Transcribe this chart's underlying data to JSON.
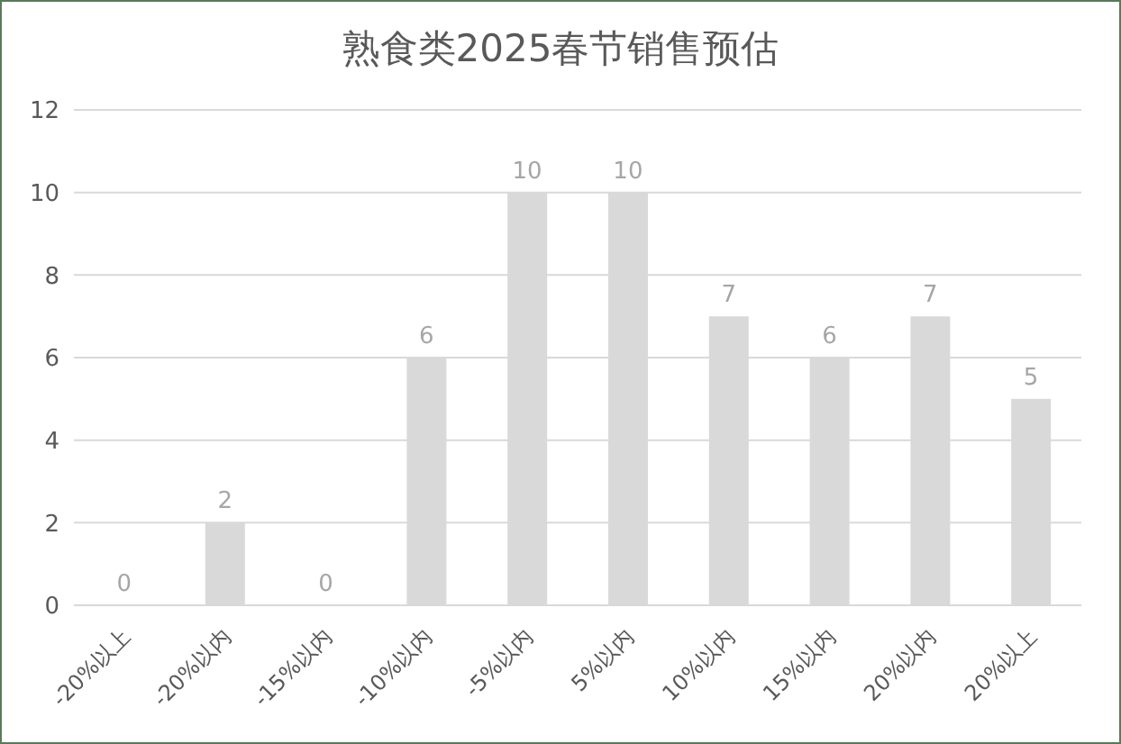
{
  "chart_data": {
    "type": "bar",
    "title": "熟食类2025春节销售预估",
    "categories": [
      "-20%以上",
      "-20%以内",
      "-15%以内",
      "-10%以内",
      "-5%以内",
      "5%以内",
      "10%以内",
      "15%以内",
      "20%以内",
      "20%以上"
    ],
    "values": [
      0,
      2,
      0,
      6,
      10,
      10,
      7,
      6,
      7,
      5
    ],
    "color": "#d9d9d9",
    "ylim": [
      0,
      12
    ],
    "yticks": [
      0,
      2,
      4,
      6,
      8,
      10,
      12
    ],
    "grid": "y",
    "data_labels": true
  }
}
